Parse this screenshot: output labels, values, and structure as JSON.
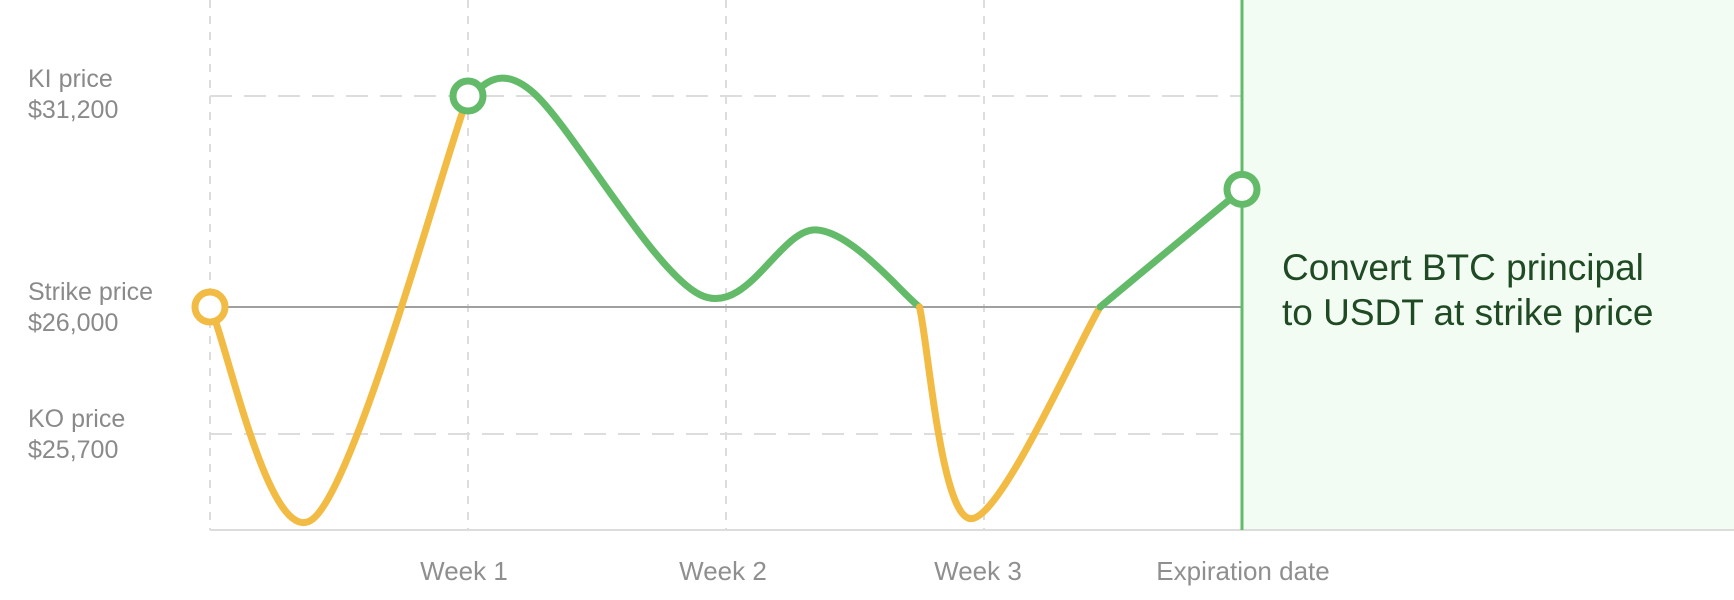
{
  "chart_data": {
    "type": "line",
    "y_levels": [
      {
        "name": "KI price",
        "value": "$31,200",
        "price": 31200
      },
      {
        "name": "Strike price",
        "value": "$26,000",
        "price": 26000
      },
      {
        "name": "KO price",
        "value": "$25,700",
        "price": 25700
      }
    ],
    "categories": [
      "Week 1",
      "Week 2",
      "Week 3",
      "Expiration date"
    ],
    "x_ticks": [
      {
        "label": "Week 1",
        "week": 1
      },
      {
        "label": "Week 2",
        "week": 2
      },
      {
        "label": "Week 3",
        "week": 3
      },
      {
        "label": "Expiration date",
        "week": 4
      }
    ],
    "series": [
      {
        "points": [
          {
            "week": 0.0,
            "price": 26000
          },
          {
            "week": 0.4,
            "price": 25500
          },
          {
            "week": 1.0,
            "price": 31200
          },
          {
            "week": 1.25,
            "price": 31300
          },
          {
            "week": 1.9,
            "price": 26300
          },
          {
            "week": 2.35,
            "price": 27900
          },
          {
            "week": 2.75,
            "price": 26000
          },
          {
            "week": 2.95,
            "price": 25500
          },
          {
            "week": 3.45,
            "price": 26000
          },
          {
            "week": 4.0,
            "price": 28900
          }
        ]
      }
    ],
    "start_marker": {
      "week": 0.0,
      "price": 26000
    },
    "ki_marker": {
      "week": 1.0,
      "price": 31200
    },
    "end_marker": {
      "week": 4.0,
      "price": 28900
    },
    "colors": {
      "below_ki_path": "#f2bb44",
      "above_strike_path": "#63bb6a",
      "expiration_zone": "#f3fcf3",
      "expiration_line": "#63bb6a",
      "strike_line": "#a0a0a0",
      "grid": "#dddddd"
    },
    "grid": true,
    "expiration_note": {
      "line1": "Convert BTC principal",
      "line2": "to USDT at strike price"
    }
  }
}
